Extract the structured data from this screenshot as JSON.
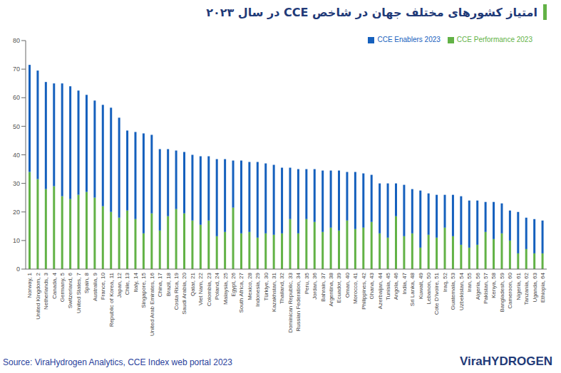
{
  "chart_data": {
    "type": "bar",
    "title": "امتیاز کشورهای مختلف جهان در شاخص CCE در سال ۲۰۲۳",
    "annotations": [
      "Source: ViraHydrogen Analytics, CCE Index web portal 2023",
      "ViraHYDROGEN"
    ],
    "stacked": true,
    "grid": false,
    "legend": "upper right",
    "ylim": [
      0,
      80
    ],
    "yticks": [
      0,
      10,
      20,
      30,
      40,
      50,
      60,
      70,
      80
    ],
    "categories": [
      "Norway, 1",
      "United Kingdom, 2",
      "Netherlands, 3",
      "Canada, 4",
      "Germany, 5",
      "Switzerland, 6",
      "United States, 7",
      "Spain, 8",
      "Australia, 9",
      "France, 10",
      "Republic of Korea, 11",
      "Japan, 12",
      "Chile, 13",
      "Italy, 14",
      "Singapore, 15",
      "United Arab Emirates, 16",
      "China, 17",
      "Brazil, 18",
      "Costa Rica, 19",
      "Saudi Arabia, 20",
      "Qatar, 21",
      "Viet Nam, 22",
      "Colombia, 23",
      "Poland, 24",
      "Malaysia, 25",
      "Egypt, 26",
      "South Africa, 27",
      "Mexico, 28",
      "Indonesia, 29",
      "Türkiye, 30",
      "Kazakhstan, 31",
      "Thailand, 32",
      "Dominican Republic, 33",
      "Russian Federation, 34",
      "Peru, 35",
      "Jordan, 36",
      "Bahrain, 37",
      "Argentina, 38",
      "Ecuador, 39",
      "Oman, 40",
      "Morocco, 41",
      "Philippines, 42",
      "Ghana, 43",
      "Azerbaijan, 44",
      "Tunisia, 45",
      "Angola, 46",
      "India, 47",
      "Sri Lanka, 48",
      "Kuwait, 49",
      "Lebanon, 50",
      "Cote D'Ivoire, 51",
      "Iraq, 52",
      "Guatemala, 53",
      "Uzbekistan, 54",
      "Iran, 55",
      "Algeria, 56",
      "Pakistan, 57",
      "Kenya, 58",
      "Bangladesh, 59",
      "Cameroon, 60",
      "Nigeria, 61",
      "Tanzania, 62",
      "Uganda, 63",
      "Ethiopia, 64"
    ],
    "series": [
      {
        "name": "CCE Performance 2023",
        "color": "#62b246",
        "values": [
          34,
          31.5,
          28,
          29,
          25.5,
          24.5,
          26,
          27,
          25,
          22,
          20,
          18,
          20.5,
          17.5,
          12.5,
          19.5,
          13.5,
          18.5,
          21,
          19.5,
          17,
          15.5,
          17,
          11.5,
          13,
          21.5,
          12.5,
          13,
          11,
          12.5,
          12,
          12.5,
          17.5,
          12.5,
          17.5,
          16.5,
          13,
          14.5,
          13.5,
          17,
          14,
          14.5,
          16.5,
          12.5,
          11,
          18.5,
          11.5,
          12.5,
          7.5,
          12,
          11,
          14.5,
          11.5,
          8.5,
          7.5,
          8.5,
          13,
          10.5,
          12.5,
          10,
          5.5,
          7,
          5.5,
          5.5
        ]
      },
      {
        "name": "CCE Enablers 2023",
        "color": "#1560bd",
        "values": [
          37.5,
          38,
          37.5,
          36,
          39.5,
          39.5,
          36.5,
          34,
          34,
          35.5,
          36.5,
          35,
          28,
          30.5,
          35,
          27.5,
          28.5,
          23.5,
          20.5,
          21.5,
          23,
          24,
          22.5,
          27,
          25.5,
          16.5,
          25.5,
          24.5,
          26.5,
          24.5,
          24.5,
          23,
          18,
          22.5,
          17.5,
          18.5,
          21.5,
          20,
          21,
          17,
          20,
          19,
          16.5,
          17.5,
          19,
          11.5,
          18,
          15.5,
          20,
          14.5,
          15,
          11.5,
          14.5,
          17,
          16.5,
          15.5,
          10.5,
          13,
          10.5,
          10.5,
          14.5,
          11,
          12,
          11.5
        ]
      }
    ]
  }
}
